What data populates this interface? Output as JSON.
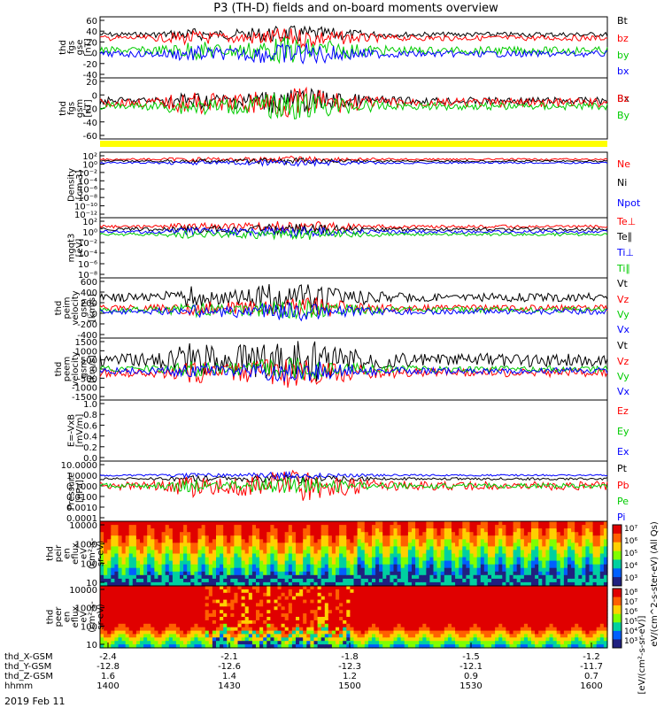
{
  "title": "P3 (TH-D) fields and on-board moments overview",
  "date_label": "2019 Feb 11",
  "ephemeris_rows": [
    {
      "label": "thd_X-GSM",
      "values": [
        "-2.4",
        "-2.1",
        "-1.8",
        "-1.5",
        "-1.2"
      ]
    },
    {
      "label": "thd_Y-GSM",
      "values": [
        "-12.8",
        "-12.6",
        "-12.3",
        "-12.1",
        "-11.7"
      ]
    },
    {
      "label": "thd_Z-GSM",
      "values": [
        "1.6",
        "1.4",
        "1.2",
        "0.9",
        "0.7"
      ]
    },
    {
      "label": "hhmm",
      "values": [
        "1400",
        "1430",
        "1500",
        "1530",
        "1600"
      ]
    }
  ],
  "colorbar_label": "[eV/(cm²-s-sr-eV)]",
  "colorbar_side_text": "eV/(cm^2-s-ster-eV) (All Qs)",
  "chart_data": [
    {
      "type": "line",
      "id": "fgs_gse",
      "ylabel": [
        "thd",
        "fgs",
        "gse",
        "[nT]"
      ],
      "yticks": [
        "60",
        "40",
        "20",
        "0",
        "-20",
        "-40"
      ],
      "ylim": [
        -45,
        65
      ],
      "series": [
        {
          "name": "Bt",
          "color": "#000000"
        },
        {
          "name": "bz",
          "color": "#ff0000"
        },
        {
          "name": "by",
          "color": "#00cc00"
        },
        {
          "name": "bx",
          "color": "#0000ff"
        }
      ]
    },
    {
      "type": "line",
      "id": "fgs_gsm",
      "ylabel": [
        "thd",
        "fgs",
        "gsm",
        "[nT]"
      ],
      "yticks": [
        "20",
        "0",
        "-20",
        "-40",
        "-60"
      ],
      "ylim": [
        -70,
        30
      ],
      "series": [
        {
          "name": "Bx",
          "color": "#000000"
        },
        {
          "name": "Bz",
          "color": "#ff0000"
        },
        {
          "name": "By",
          "color": "#00cc00"
        }
      ]
    },
    {
      "type": "line",
      "id": "density",
      "ylabel": [
        "Density",
        "[cm-3]"
      ],
      "yticks": [
        "10²",
        "10⁰",
        "10⁻²",
        "10⁻⁴",
        "10⁻⁶",
        "10⁻⁸",
        "10⁻¹⁰",
        "10⁻¹²"
      ],
      "ylim": [
        -13,
        2.5
      ],
      "log": true,
      "series": [
        {
          "name": "Ne",
          "color": "#ff0000"
        },
        {
          "name": "Ni",
          "color": "#000000"
        },
        {
          "name": "Npot",
          "color": "#0000ff"
        }
      ]
    },
    {
      "type": "line",
      "id": "temperature",
      "ylabel": [
        "mgqt3",
        "[eV]"
      ],
      "yticks": [
        "10²",
        "10⁰",
        "10⁻²",
        "10⁻⁴",
        "10⁻⁶",
        "10⁻⁸"
      ],
      "ylim": [
        -9,
        3
      ],
      "log": true,
      "series": [
        {
          "name": "Te⊥",
          "color": "#ff0000"
        },
        {
          "name": "Te∥",
          "color": "#000000"
        },
        {
          "name": "Ti⊥",
          "color": "#0000ff"
        },
        {
          "name": "Ti∥",
          "color": "#00cc00"
        }
      ]
    },
    {
      "type": "line",
      "id": "peim_velocity",
      "ylabel": [
        "thd",
        "peim",
        "velocity",
        "gsm",
        "[km/s]"
      ],
      "yticks": [
        "600",
        "400",
        "200",
        "0",
        "-200",
        "-400"
      ],
      "ylim": [
        -420,
        640
      ],
      "series": [
        {
          "name": "Vt",
          "color": "#000000"
        },
        {
          "name": "Vz",
          "color": "#ff0000"
        },
        {
          "name": "Vy",
          "color": "#00cc00"
        },
        {
          "name": "Vx",
          "color": "#0000ff"
        }
      ]
    },
    {
      "type": "line",
      "id": "peem_velocity",
      "ylabel": [
        "thd",
        "peem",
        "velocity",
        "gsm",
        "[km/s]"
      ],
      "yticks": [
        "1500",
        "1000",
        "500",
        "0",
        "-500",
        "-1000",
        "-1500"
      ],
      "ylim": [
        -1550,
        1600
      ],
      "series": [
        {
          "name": "Vt",
          "color": "#000000"
        },
        {
          "name": "Vz",
          "color": "#ff0000"
        },
        {
          "name": "Vy",
          "color": "#00cc00"
        },
        {
          "name": "Vx",
          "color": "#0000ff"
        }
      ]
    },
    {
      "type": "line",
      "id": "efield",
      "ylabel": [
        "E=-VxB",
        "[mV/m]"
      ],
      "yticks": [
        "1.0",
        "0.8",
        "0.6",
        "0.4",
        "0.2",
        "0.0"
      ],
      "ylim": [
        0,
        1.05
      ],
      "series": [
        {
          "name": "Ez",
          "color": "#ff0000"
        },
        {
          "name": "Ey",
          "color": "#00cc00"
        },
        {
          "name": "Ex",
          "color": "#0000ff"
        }
      ]
    },
    {
      "type": "line",
      "id": "pressure",
      "ylabel": [
        "Pressure",
        "[nPa]"
      ],
      "yticks": [
        "10.0000",
        "1.0000",
        "0.1000",
        "0.0100",
        "0.0010",
        "0.0001"
      ],
      "ylim": [
        -4,
        1.1
      ],
      "log": true,
      "series": [
        {
          "name": "Pt",
          "color": "#000000"
        },
        {
          "name": "Pb",
          "color": "#ff0000"
        },
        {
          "name": "Pe",
          "color": "#00cc00"
        },
        {
          "name": "Pi",
          "color": "#0000ff"
        }
      ]
    },
    {
      "type": "heatmap",
      "id": "peir_eflux",
      "ylabel": [
        "thd",
        "peir",
        "en",
        "eflux",
        "eV",
        "(cm²-s-",
        "sr-eV)"
      ],
      "yticks": [
        "10000",
        "1000",
        "100",
        "10"
      ]
    },
    {
      "type": "heatmap",
      "id": "peer_eflux",
      "ylabel": [
        "thd",
        "peer",
        "en",
        "eflux",
        "eV",
        "(cm²-s-",
        "sr-eV)"
      ],
      "yticks": [
        "10000",
        "1000",
        "100",
        "10"
      ]
    },
    {
      "type": "colorbar",
      "id": "colorbar",
      "ticks": [
        "10⁷",
        "10⁶",
        "10⁵",
        "10⁴",
        "10³"
      ],
      "ticks_lower": [
        "10⁸",
        "10⁷",
        "10⁶",
        "10⁵",
        "10⁴",
        "10³"
      ]
    }
  ]
}
